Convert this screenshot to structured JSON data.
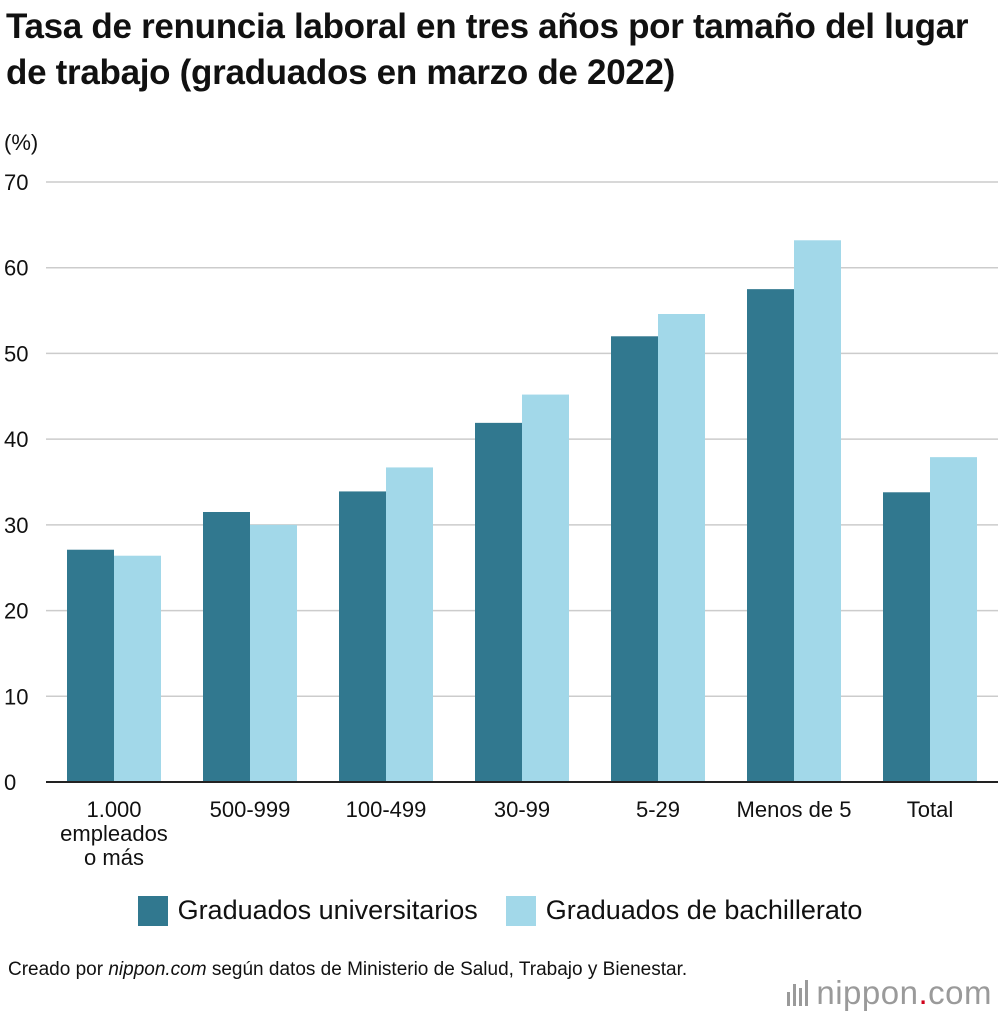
{
  "title": "Tasa de renuncia laboral en tres años por tamaño del lugar de trabajo (graduados en marzo de 2022)",
  "unit_label": "(%)",
  "legend": {
    "university": "Graduados universitarios",
    "highschool": "Graduados de bachillerato"
  },
  "source": {
    "prefix": "Creado por ",
    "site": "nippon.com",
    "suffix": " según datos de Ministerio de Salud, Trabajo y Bienestar."
  },
  "logo": {
    "name": "nippon",
    "dot": ".",
    "tld": "com"
  },
  "colors": {
    "university": "#31788F",
    "highschool": "#A2D8E9",
    "grid": "#cccccc",
    "axis": "#222222"
  },
  "chart_data": {
    "type": "bar",
    "title": "Tasa de renuncia laboral en tres años por tamaño del lugar de trabajo (graduados en marzo de 2022)",
    "ylabel": "(%)",
    "xlabel": "",
    "ylim": [
      0,
      70
    ],
    "yticks": [
      0,
      10,
      20,
      30,
      40,
      50,
      60,
      70
    ],
    "grid": true,
    "legend_position": "bottom",
    "categories": [
      [
        "1.000",
        "empleados",
        "o más"
      ],
      [
        "500-999"
      ],
      [
        "100-499"
      ],
      [
        "30-99"
      ],
      [
        "5-29"
      ],
      [
        "Menos de 5"
      ],
      [
        "Total"
      ]
    ],
    "series": [
      {
        "name": "Graduados universitarios",
        "values": [
          27.1,
          31.5,
          33.9,
          41.9,
          52.0,
          57.5,
          33.8
        ]
      },
      {
        "name": "Graduados de bachillerato",
        "values": [
          26.4,
          30.0,
          36.7,
          45.2,
          54.6,
          63.2,
          37.9
        ]
      }
    ]
  }
}
